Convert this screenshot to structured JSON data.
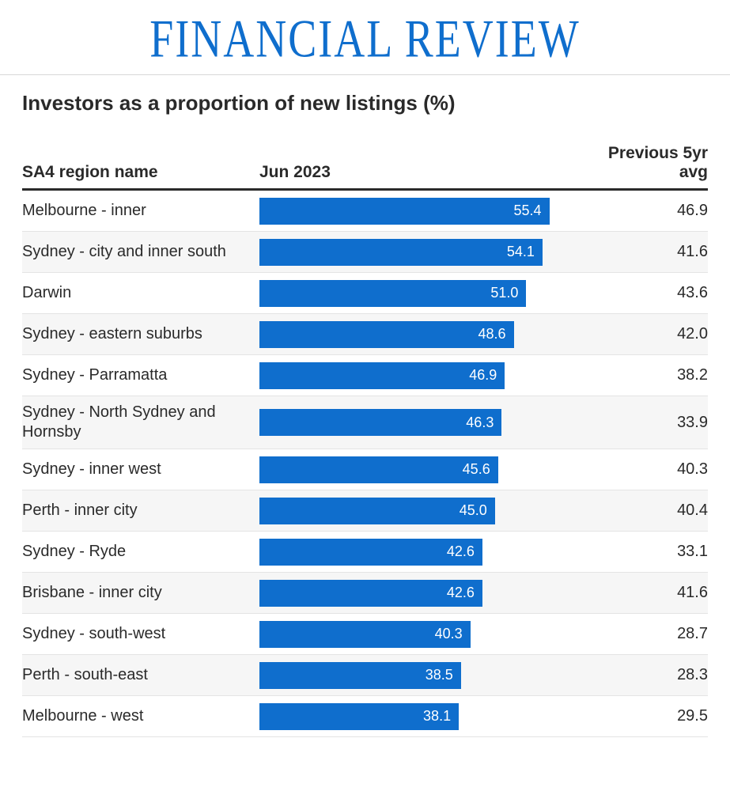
{
  "masthead": {
    "title": "FINANCIAL REVIEW",
    "color": "#0f6ecd"
  },
  "chart": {
    "title": "Investors as a proportion of new listings (%)",
    "type": "bar-table",
    "columns": {
      "name": "SA4 region name",
      "value": "Jun 2023",
      "avg": "Previous 5yr avg"
    },
    "bar_color": "#0f6ecd",
    "bar_text_color": "#ffffff",
    "row_alt_bg": "#f6f6f6",
    "row_bg": "#ffffff",
    "border_color": "#e4e4e4",
    "header_rule_color": "#2a2a2a",
    "value_max": 60,
    "decimals": 1,
    "rows": [
      {
        "name": "Melbourne - inner",
        "value": 55.4,
        "avg": 46.9
      },
      {
        "name": "Sydney - city and inner south",
        "value": 54.1,
        "avg": 41.6
      },
      {
        "name": "Darwin",
        "value": 51.0,
        "avg": 43.6
      },
      {
        "name": "Sydney - eastern suburbs",
        "value": 48.6,
        "avg": 42.0
      },
      {
        "name": "Sydney - Parramatta",
        "value": 46.9,
        "avg": 38.2
      },
      {
        "name": "Sydney - North Sydney and Hornsby",
        "value": 46.3,
        "avg": 33.9
      },
      {
        "name": "Sydney - inner west",
        "value": 45.6,
        "avg": 40.3
      },
      {
        "name": "Perth - inner city",
        "value": 45.0,
        "avg": 40.4
      },
      {
        "name": "Sydney - Ryde",
        "value": 42.6,
        "avg": 33.1
      },
      {
        "name": "Brisbane - inner city",
        "value": 42.6,
        "avg": 41.6
      },
      {
        "name": "Sydney - south-west",
        "value": 40.3,
        "avg": 28.7
      },
      {
        "name": "Perth - south-east",
        "value": 38.5,
        "avg": 28.3
      },
      {
        "name": "Melbourne - west",
        "value": 38.1,
        "avg": 29.5
      }
    ]
  }
}
